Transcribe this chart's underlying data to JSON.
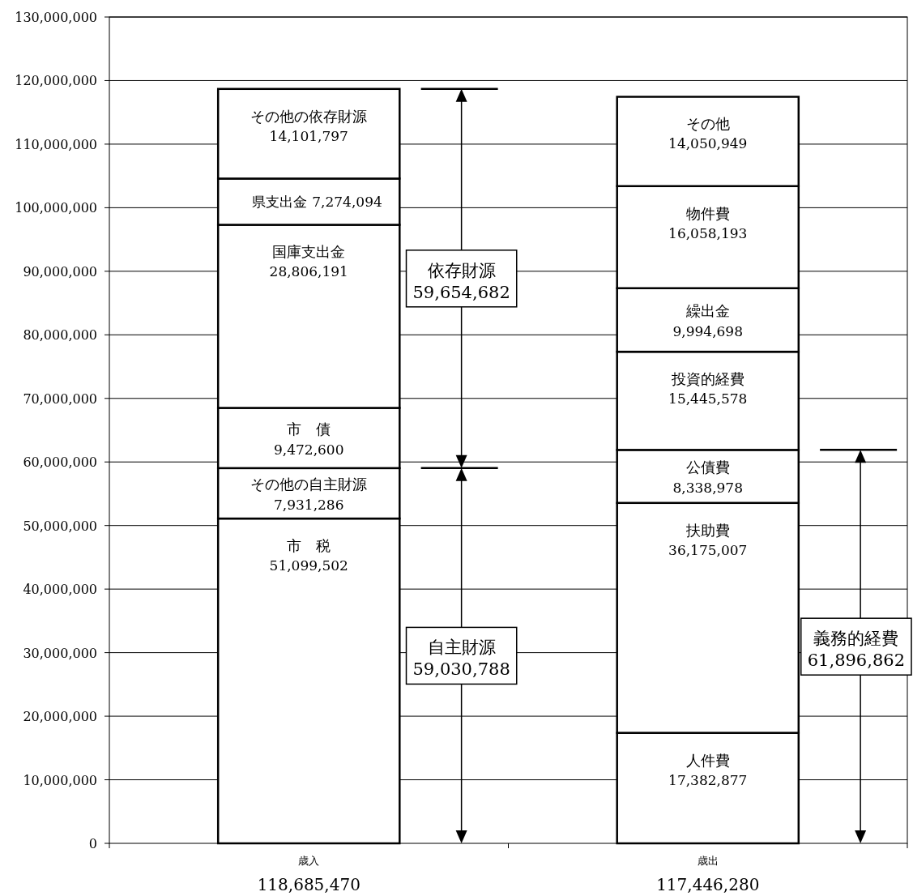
{
  "chart_data": {
    "type": "bar",
    "stacked": true,
    "grid": "y",
    "categories": [
      "歳入",
      "歳出"
    ],
    "totals": [
      "118,685,470",
      "117,446,280"
    ],
    "ylim": [
      0,
      130000000
    ],
    "yticks": [
      {
        "value": 0,
        "label": "0"
      },
      {
        "value": 10000000,
        "label": "10,000,000"
      },
      {
        "value": 20000000,
        "label": "20,000,000"
      },
      {
        "value": 30000000,
        "label": "30,000,000"
      },
      {
        "value": 40000000,
        "label": "40,000,000"
      },
      {
        "value": 50000000,
        "label": "50,000,000"
      },
      {
        "value": 60000000,
        "label": "60,000,000"
      },
      {
        "value": 70000000,
        "label": "70,000,000"
      },
      {
        "value": 80000000,
        "label": "80,000,000"
      },
      {
        "value": 90000000,
        "label": "90,000,000"
      },
      {
        "value": 100000000,
        "label": "100,000,000"
      },
      {
        "value": 110000000,
        "label": "110,000,000"
      },
      {
        "value": 120000000,
        "label": "120,000,000"
      },
      {
        "value": 130000000,
        "label": "130,000,000"
      }
    ],
    "series": [
      {
        "name": "市　税",
        "color": "#ffffff",
        "values": [
          51099502,
          null
        ],
        "value_labels": [
          "51,099,502",
          null
        ]
      },
      {
        "name": "その他の自主財源",
        "color": "#ffffff",
        "values": [
          7931286,
          null
        ],
        "value_labels": [
          "7,931,286",
          null
        ]
      },
      {
        "name": "市　債",
        "color": "#ffffff",
        "values": [
          9472600,
          null
        ],
        "value_labels": [
          "9,472,600",
          null
        ]
      },
      {
        "name": "国庫支出金",
        "color": "#ffffff",
        "values": [
          28806191,
          null
        ],
        "value_labels": [
          "28,806,191",
          null
        ]
      },
      {
        "name": "県支出金",
        "color": "#ffffff",
        "values": [
          7274094,
          null
        ],
        "value_labels": [
          "7,274,094",
          null
        ]
      },
      {
        "name": "その他の依存財源",
        "color": "#ffffff",
        "values": [
          14101797,
          null
        ],
        "value_labels": [
          "14,101,797",
          null
        ]
      },
      {
        "name": "人件費",
        "color": "#ffffff",
        "values": [
          null,
          17382877
        ],
        "value_labels": [
          null,
          "17,382,877"
        ]
      },
      {
        "name": "扶助費",
        "color": "#ffffff",
        "values": [
          null,
          36175007
        ],
        "value_labels": [
          null,
          "36,175,007"
        ]
      },
      {
        "name": "公債費",
        "color": "#ffffff",
        "values": [
          null,
          8338978
        ],
        "value_labels": [
          null,
          "8,338,978"
        ]
      },
      {
        "name": "投資的経費",
        "color": "#ffffff",
        "values": [
          null,
          15445578
        ],
        "value_labels": [
          null,
          "15,445,578"
        ]
      },
      {
        "name": "繰出金",
        "color": "#ffffff",
        "values": [
          null,
          9994698
        ],
        "value_labels": [
          null,
          "9,994,698"
        ]
      },
      {
        "name": "物件費",
        "color": "#ffffff",
        "values": [
          null,
          16058193
        ],
        "value_labels": [
          null,
          "16,058,193"
        ]
      },
      {
        "name": "その他",
        "color": "#ffffff",
        "values": [
          null,
          14050949
        ],
        "value_labels": [
          null,
          "14,050,949"
        ]
      }
    ],
    "ref_lines": [
      {
        "axis": "y",
        "value": 118685470,
        "color": "#000000"
      },
      {
        "axis": "y",
        "value": 59030788,
        "color": "#000000"
      },
      {
        "axis": "y",
        "value": 61896862,
        "color": "#000000"
      }
    ],
    "annotations": [
      "依存財源\n59,654,682",
      "自主財源\n59,030,788",
      "義務的経費\n61,896,862"
    ]
  }
}
